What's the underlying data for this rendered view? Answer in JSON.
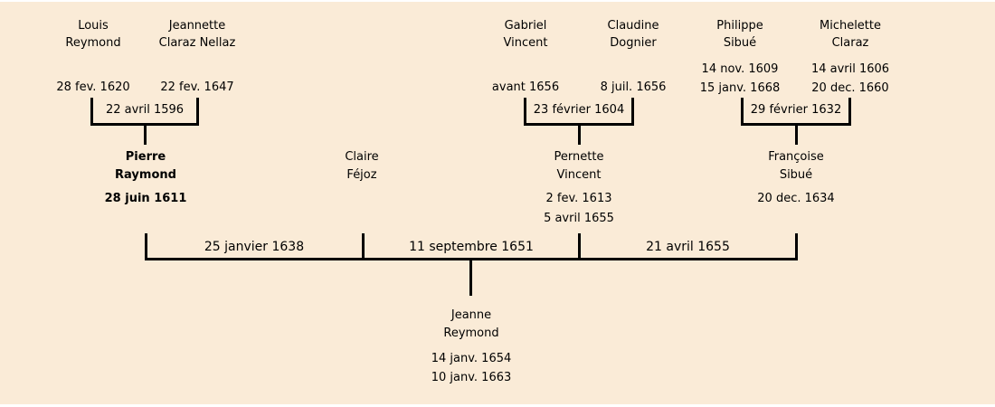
{
  "palette": {
    "background": "#faebd7",
    "line": "#000000",
    "text": "#000000"
  },
  "generation1": {
    "couple_reymond": {
      "husband": {
        "first": "Louis",
        "last": "Reymond",
        "date1": "28 fev. 1620"
      },
      "wife": {
        "first": "Jeannette",
        "last": "Claraz Nellaz",
        "date1": "22 fev. 1647"
      },
      "marriage": "22 avril 1596"
    },
    "couple_vincent": {
      "husband": {
        "first": "Gabriel",
        "last": "Vincent",
        "date1": "avant 1656"
      },
      "wife": {
        "first": "Claudine",
        "last": "Dognier",
        "date1": "8 juil. 1656"
      },
      "marriage": "23 février 1604"
    },
    "couple_sibue": {
      "husband": {
        "first": "Philippe",
        "last": "Sibué",
        "date1": "14 nov. 1609",
        "date2": "15 janv. 1668"
      },
      "wife": {
        "first": "Michelette",
        "last": "Claraz",
        "date1": "14 avril 1606",
        "date2": "20 dec. 1660"
      },
      "marriage": "29 février 1632"
    }
  },
  "generation2": {
    "pierre": {
      "first": "Pierre",
      "last": "Raymond",
      "date1": "28 juin 1611"
    },
    "claire": {
      "first": "Claire",
      "last": "Féjoz"
    },
    "pernette": {
      "first": "Pernette",
      "last": "Vincent",
      "date1": "2 fev. 1613",
      "date2": "5 avril 1655"
    },
    "francoise": {
      "first": "Françoise",
      "last": "Sibué",
      "date1": "20 dec. 1634"
    },
    "marriage1": "25 janvier 1638",
    "marriage2": "11 septembre 1651",
    "marriage3": "21 avril 1655"
  },
  "generation3": {
    "jeanne": {
      "first": "Jeanne",
      "last": "Reymond",
      "date1": "14 janv. 1654",
      "date2": "10 janv. 1663"
    }
  }
}
